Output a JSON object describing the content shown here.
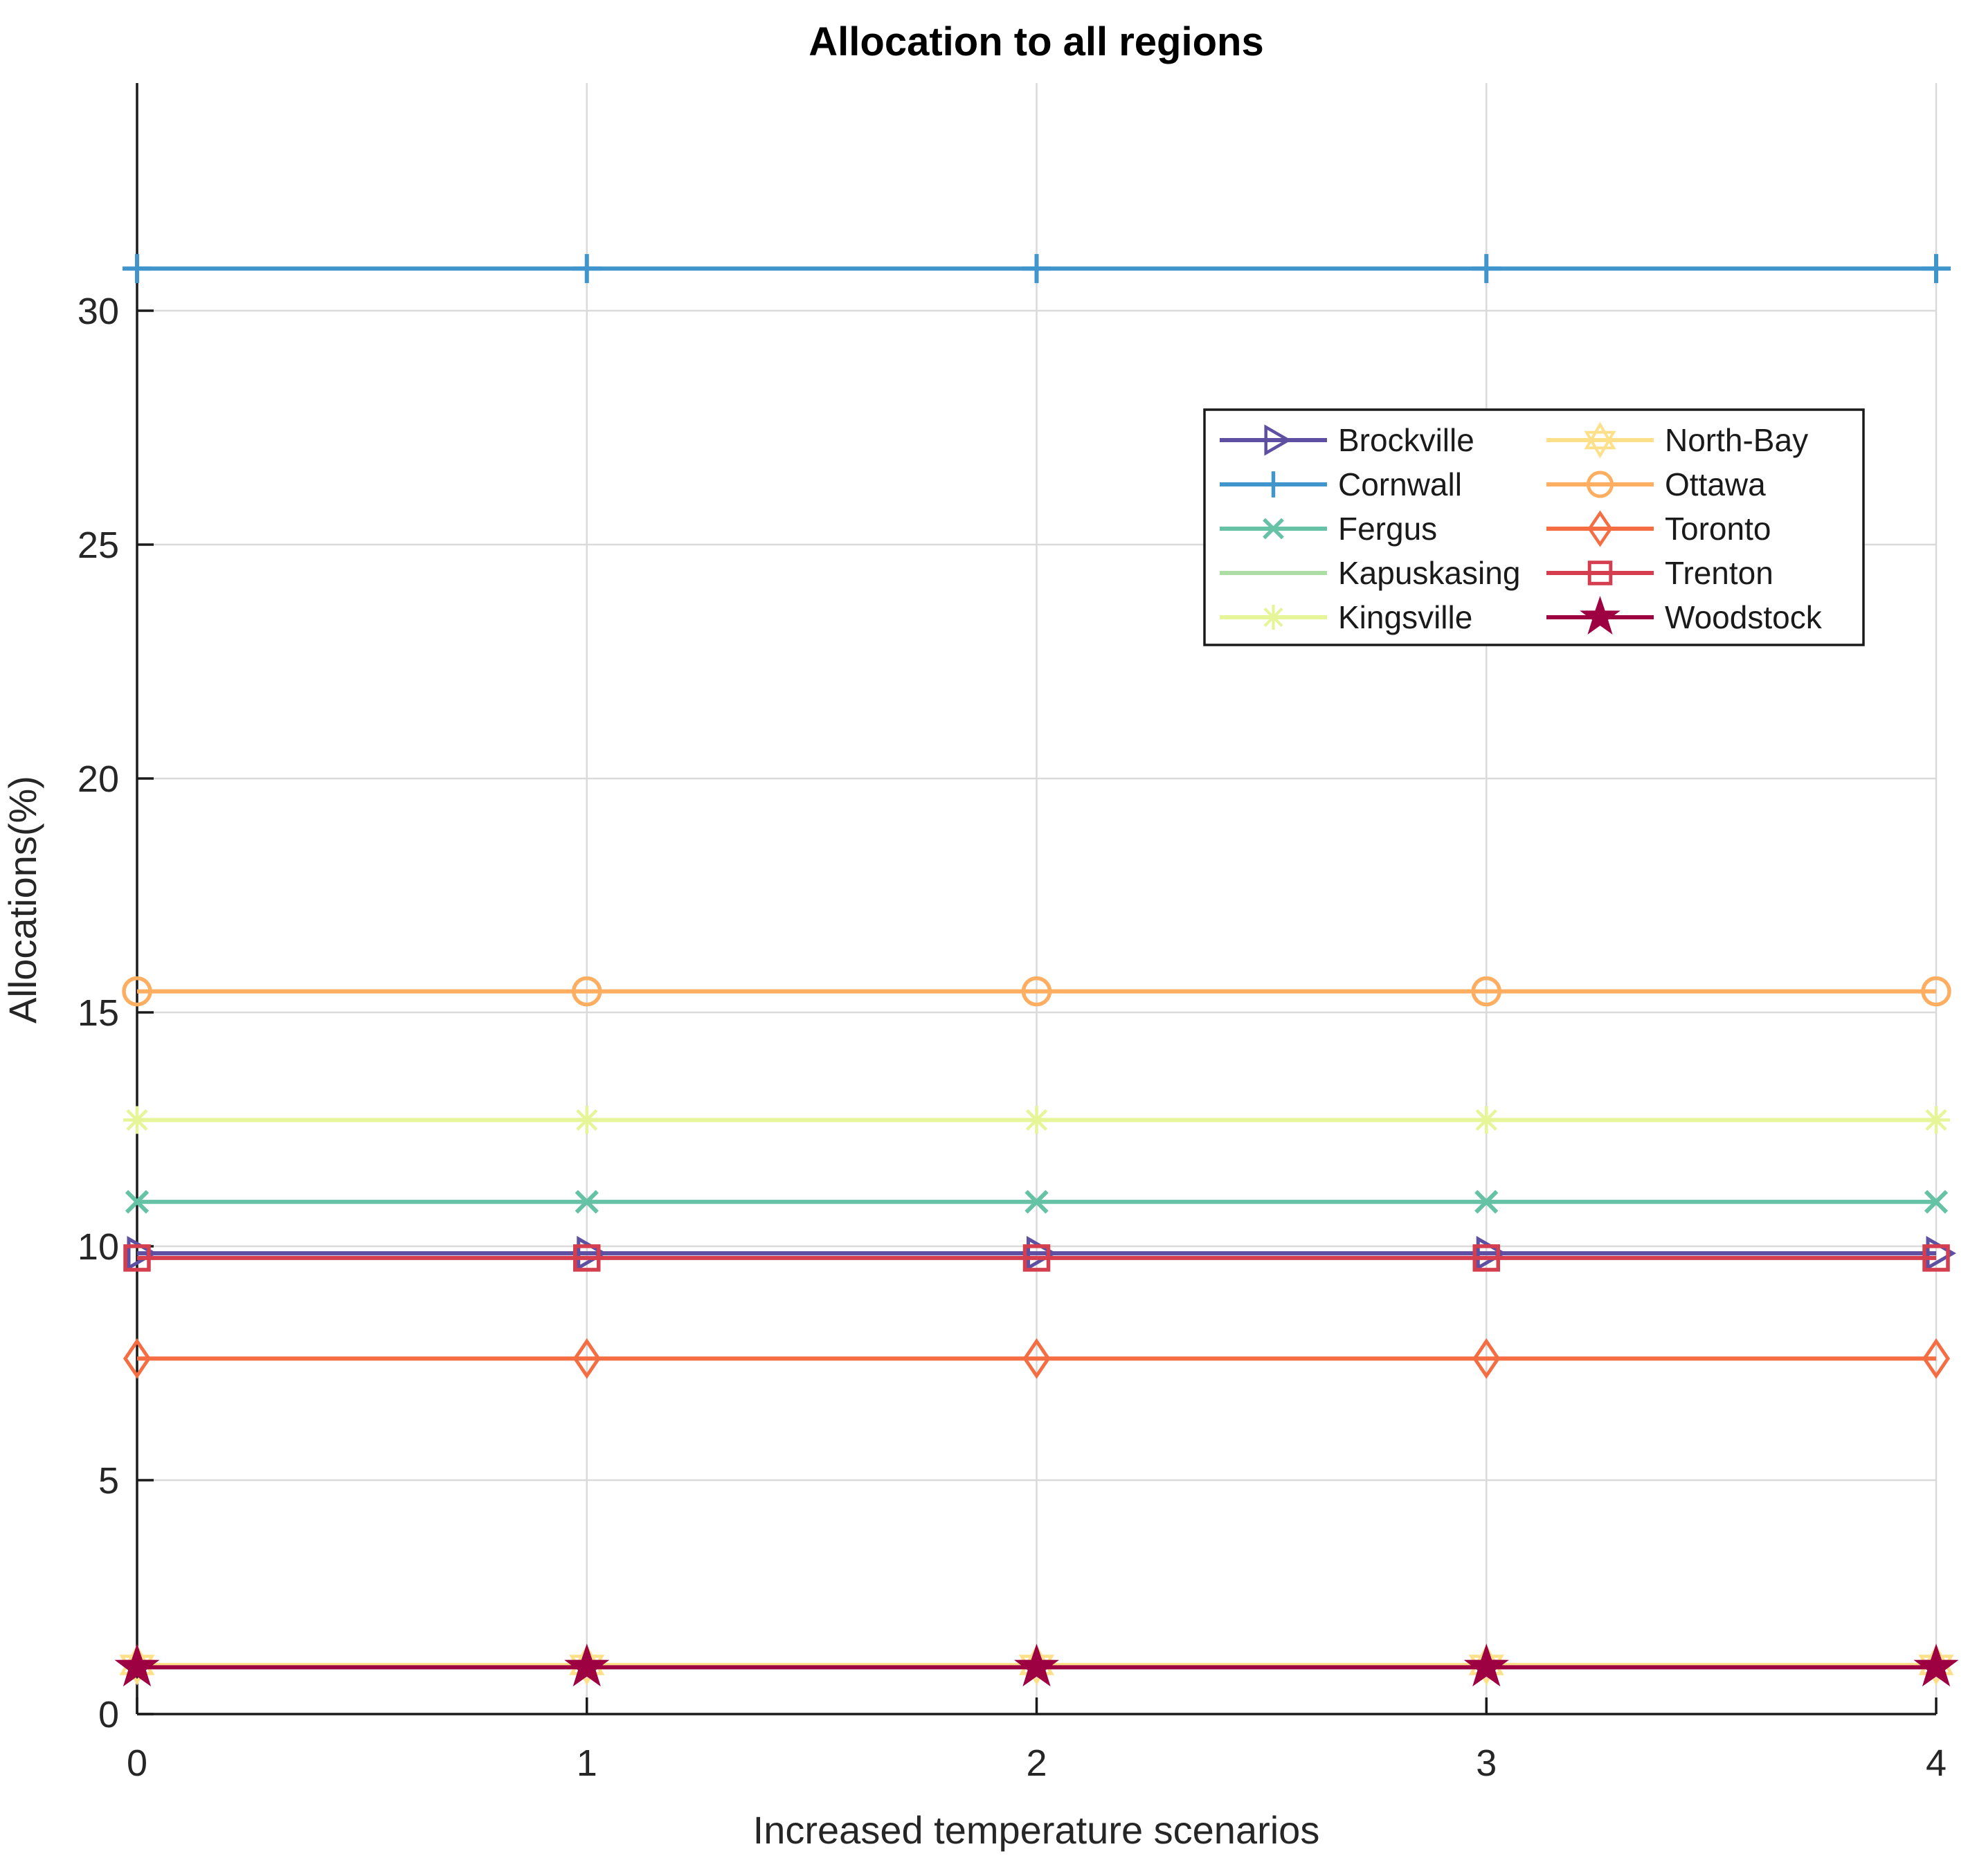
{
  "chart_data": {
    "type": "line",
    "title": "Allocation to all regions",
    "xlabel": "Increased temperature scenarios",
    "ylabel": "Allocations(%)",
    "x": [
      0,
      1,
      2,
      3,
      4
    ],
    "xticks": [
      0,
      1,
      2,
      3,
      4
    ],
    "yticks": [
      0,
      5,
      10,
      15,
      20,
      25,
      30
    ],
    "xlim": [
      0,
      4
    ],
    "ylim": [
      0,
      35
    ],
    "grid": true,
    "legend_position": "upper-right-inside",
    "legend_columns": 2,
    "axis_color": "#1a1a1a",
    "grid_color": "#dadada",
    "series": [
      {
        "name": "Brockville",
        "color": "#5e4fa2",
        "marker": "triangle-right",
        "values": [
          9.85,
          9.85,
          9.85,
          9.85,
          9.85
        ]
      },
      {
        "name": "Cornwall",
        "color": "#3f95cc",
        "marker": "plus",
        "values": [
          30.9,
          30.9,
          30.9,
          30.9,
          30.9
        ]
      },
      {
        "name": "Fergus",
        "color": "#66c2a5",
        "marker": "x",
        "values": [
          10.95,
          10.95,
          10.95,
          10.95,
          10.95
        ]
      },
      {
        "name": "Kapuskasing",
        "color": "#abdda4",
        "marker": "none",
        "values": [
          1.0,
          1.0,
          1.0,
          1.0,
          1.0
        ]
      },
      {
        "name": "Kingsville",
        "color": "#e6f598",
        "marker": "asterisk",
        "values": [
          12.7,
          12.7,
          12.7,
          12.7,
          12.7
        ]
      },
      {
        "name": "North-Bay",
        "color": "#fee08b",
        "marker": "hexagram",
        "values": [
          1.05,
          1.05,
          1.05,
          1.05,
          1.05
        ]
      },
      {
        "name": "Ottawa",
        "color": "#fdae61",
        "marker": "circle",
        "values": [
          15.45,
          15.45,
          15.45,
          15.45,
          15.45
        ]
      },
      {
        "name": "Toronto",
        "color": "#f46d43",
        "marker": "diamond",
        "values": [
          7.6,
          7.6,
          7.6,
          7.6,
          7.6
        ]
      },
      {
        "name": "Trenton",
        "color": "#d53e4f",
        "marker": "square",
        "values": [
          9.75,
          9.75,
          9.75,
          9.75,
          9.75
        ]
      },
      {
        "name": "Woodstock",
        "color": "#9e0142",
        "marker": "pentagram",
        "values": [
          1.0,
          1.0,
          1.0,
          1.0,
          1.0
        ]
      }
    ]
  }
}
